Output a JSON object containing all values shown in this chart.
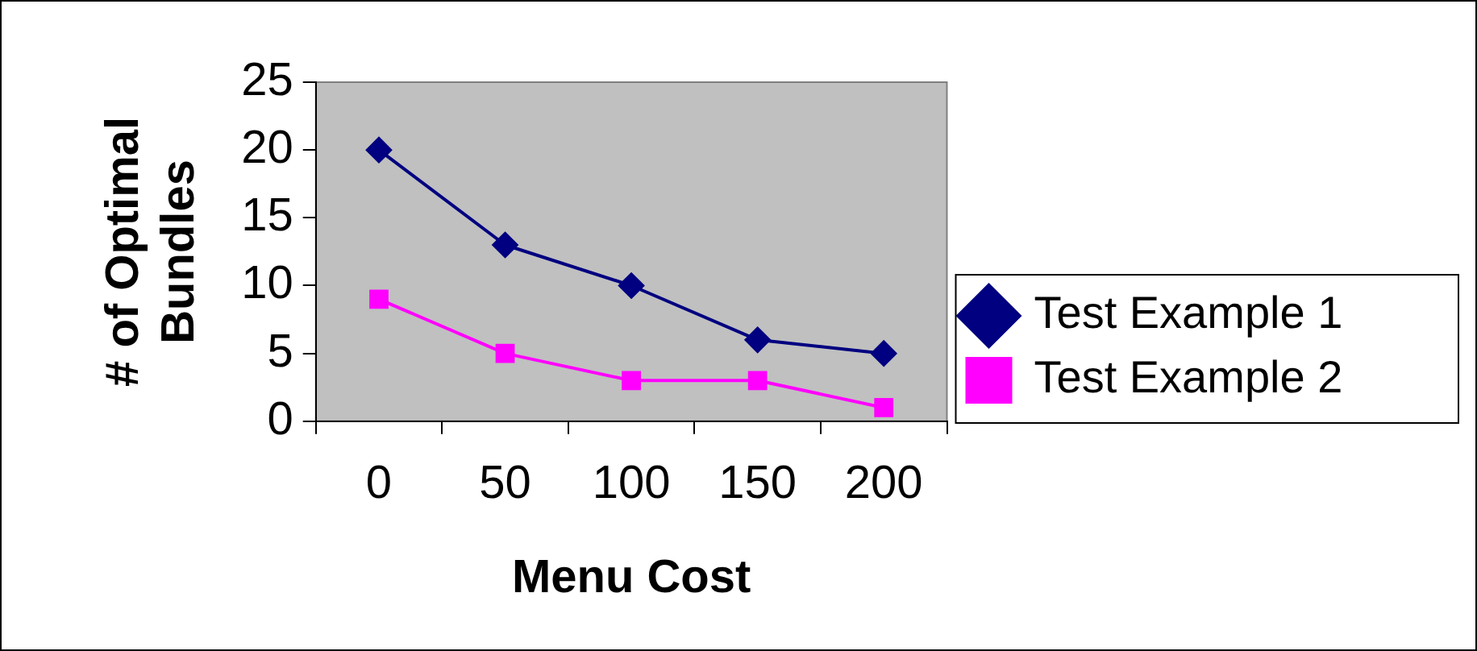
{
  "chart_data": {
    "type": "line",
    "xlabel": "Menu Cost",
    "ylabel": "# of Optimal Bundles",
    "categories": [
      "0",
      "50",
      "100",
      "150",
      "200"
    ],
    "series": [
      {
        "name": "Test Example 1",
        "color": "#000080",
        "marker": "diamond",
        "values": [
          20,
          13,
          10,
          6,
          5
        ]
      },
      {
        "name": "Test Example 2",
        "color": "#ff00ff",
        "marker": "square",
        "values": [
          9,
          5,
          3,
          3,
          1
        ]
      }
    ],
    "ylim": [
      0,
      25
    ],
    "yticks": [
      0,
      5,
      10,
      15,
      20,
      25
    ],
    "grid": false,
    "legend": "right",
    "line_style": "solid"
  }
}
